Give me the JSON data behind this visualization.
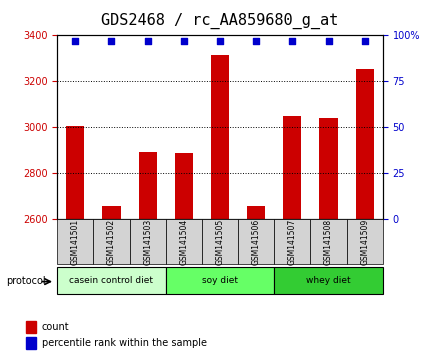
{
  "title": "GDS2468 / rc_AA859680_g_at",
  "samples": [
    "GSM141501",
    "GSM141502",
    "GSM141503",
    "GSM141504",
    "GSM141505",
    "GSM141506",
    "GSM141507",
    "GSM141508",
    "GSM141509"
  ],
  "counts": [
    3005,
    2660,
    2895,
    2890,
    3315,
    2660,
    3050,
    3040,
    3255
  ],
  "percentile_ranks": [
    97,
    97,
    97,
    97,
    97,
    97,
    97,
    97,
    97
  ],
  "ylim_left": [
    2600,
    3400
  ],
  "ylim_right": [
    0,
    100
  ],
  "yticks_left": [
    2600,
    2800,
    3000,
    3200,
    3400
  ],
  "yticks_right": [
    0,
    25,
    50,
    75,
    100
  ],
  "bar_color": "#cc0000",
  "percentile_color": "#0000cc",
  "background_color": "#ffffff",
  "protocols": [
    {
      "label": "casein control diet",
      "samples": 3,
      "color": "#ccffcc"
    },
    {
      "label": "soy diet",
      "samples": 3,
      "color": "#66ff66"
    },
    {
      "label": "whey diet",
      "samples": 3,
      "color": "#33cc33"
    }
  ],
  "protocol_label": "protocol",
  "legend_count_label": "count",
  "legend_percentile_label": "percentile rank within the sample",
  "title_fontsize": 11,
  "axis_label_color_left": "#cc0000",
  "axis_label_color_right": "#0000cc"
}
